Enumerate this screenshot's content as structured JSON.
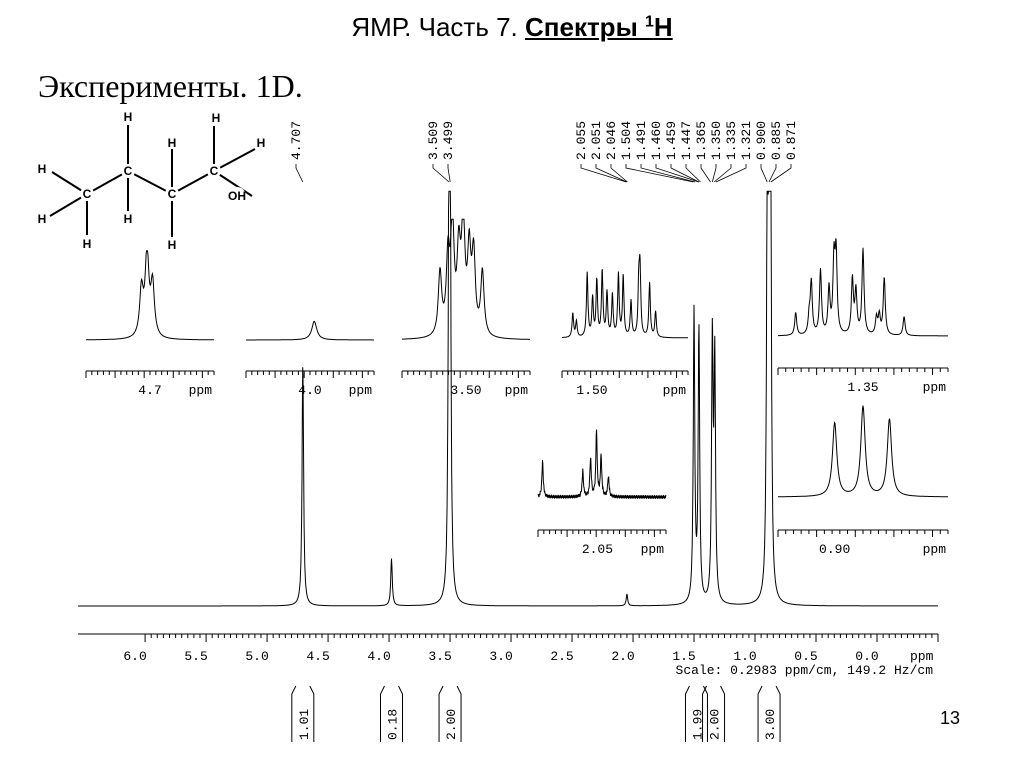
{
  "header": {
    "title_prefix": "ЯМР. Часть 7. ",
    "title_strong": "Спектры ",
    "title_sup": "1",
    "title_strong_end": "Н",
    "subtitle": "Эксперименты. 1D.",
    "page_number": "13"
  },
  "structure": {
    "carbon_label": "C",
    "hydrogen_label": "H",
    "hydroxyl_label": "OH"
  },
  "colors": {
    "ink": "#000000",
    "background": "#ffffff"
  },
  "chart_data": [
    {
      "type": "line",
      "title": "",
      "xlabel": "ppm",
      "xlim": [
        6.55,
        -0.5
      ],
      "x_reversed": true,
      "x_ticks": [
        "6.0",
        "5.5",
        "5.0",
        "4.5",
        "4.0",
        "3.5",
        "3.0",
        "2.5",
        "2.0",
        "1.5",
        "1.0",
        "0.5",
        "0.0"
      ],
      "x_tick_values": [
        6.0,
        5.5,
        5.0,
        4.5,
        4.0,
        3.5,
        3.0,
        2.5,
        2.0,
        1.5,
        1.0,
        0.5,
        0.0
      ],
      "scale_text": "Scale: 0.2983 ppm/cm, 149.2 Hz/cm",
      "peaks": [
        {
          "ppm": 4.707,
          "height": 0.62
        },
        {
          "ppm": 3.98,
          "height": 0.12
        },
        {
          "ppm": 3.509,
          "height": 0.96
        },
        {
          "ppm": 3.499,
          "height": 0.98
        },
        {
          "ppm": 2.05,
          "height": 0.03
        },
        {
          "ppm": 1.5,
          "height": 0.74
        },
        {
          "ppm": 1.46,
          "height": 0.69
        },
        {
          "ppm": 1.35,
          "height": 0.66
        },
        {
          "ppm": 1.33,
          "height": 0.6
        },
        {
          "ppm": 0.9,
          "height": 0.92
        },
        {
          "ppm": 0.885,
          "height": 1.0
        },
        {
          "ppm": 0.871,
          "height": 0.9
        }
      ],
      "peak_labels": [
        {
          "text": "4.707",
          "ppm": 4.707
        },
        {
          "text": "3.509",
          "ppm": 3.509
        },
        {
          "text": "3.499",
          "ppm": 3.499
        },
        {
          "text": "2.055",
          "ppm": 2.055
        },
        {
          "text": "2.051",
          "ppm": 2.051
        },
        {
          "text": "2.046",
          "ppm": 2.046
        },
        {
          "text": "1.504",
          "ppm": 1.504
        },
        {
          "text": "1.491",
          "ppm": 1.491
        },
        {
          "text": "1.460",
          "ppm": 1.46
        },
        {
          "text": "1.459",
          "ppm": 1.459
        },
        {
          "text": "1.447",
          "ppm": 1.447
        },
        {
          "text": "1.365",
          "ppm": 1.365
        },
        {
          "text": "1.350",
          "ppm": 1.35
        },
        {
          "text": "1.335",
          "ppm": 1.335
        },
        {
          "text": "1.321",
          "ppm": 1.321
        },
        {
          "text": "0.900",
          "ppm": 0.9
        },
        {
          "text": "0.885",
          "ppm": 0.885
        },
        {
          "text": "0.871",
          "ppm": 0.871
        }
      ],
      "integrals": [
        {
          "ppm": 4.707,
          "value": "1.01"
        },
        {
          "ppm": 3.98,
          "value": "0.18"
        },
        {
          "ppm": 3.5,
          "value": "2.00"
        },
        {
          "ppm": 1.48,
          "value": "1.99"
        },
        {
          "ppm": 1.34,
          "value": "2.00"
        },
        {
          "ppm": 0.885,
          "value": "3.00"
        }
      ]
    },
    {
      "type": "line",
      "name": "inset 4.7",
      "tick_label": "4.7",
      "tick_ppm": 4.7,
      "unit_label": "ppm",
      "xlim": [
        4.85,
        4.55
      ],
      "peaks": [
        {
          "ppm": 4.72,
          "height": 0.55
        },
        {
          "ppm": 4.707,
          "height": 1.0
        },
        {
          "ppm": 4.694,
          "height": 0.62
        }
      ]
    },
    {
      "type": "line",
      "name": "inset 4.0",
      "tick_label": "4.0",
      "tick_ppm": 4.0,
      "unit_label": "ppm",
      "xlim": [
        4.3,
        3.7
      ],
      "peaks": [
        {
          "ppm": 3.98,
          "height": 0.22
        }
      ]
    },
    {
      "type": "line",
      "name": "inset 3.50",
      "tick_label": "3.50",
      "tick_ppm": 3.5,
      "unit_label": "ppm",
      "xlim": [
        3.58,
        3.42
      ],
      "peaks": [
        {
          "ppm": 3.5325,
          "height": 0.55
        },
        {
          "ppm": 3.5225,
          "height": 0.66
        },
        {
          "ppm": 3.517,
          "height": 0.95
        },
        {
          "ppm": 3.509,
          "height": 0.68
        },
        {
          "ppm": 3.5035,
          "height": 0.98
        },
        {
          "ppm": 3.496,
          "height": 0.7
        },
        {
          "ppm": 3.4905,
          "height": 0.68
        },
        {
          "ppm": 3.4795,
          "height": 0.56
        }
      ]
    },
    {
      "type": "line",
      "name": "inset 1.50",
      "tick_label": "1.50",
      "tick_ppm": 1.5,
      "unit_label": "ppm",
      "xlim": [
        1.525,
        1.42
      ],
      "peaks": [
        {
          "ppm": 1.516,
          "height": 0.3
        },
        {
          "ppm": 1.513,
          "height": 0.2
        },
        {
          "ppm": 1.504,
          "height": 0.8
        },
        {
          "ppm": 1.4995,
          "height": 0.48
        },
        {
          "ppm": 1.496,
          "height": 0.7
        },
        {
          "ppm": 1.4915,
          "height": 0.82
        },
        {
          "ppm": 1.4875,
          "height": 0.55
        },
        {
          "ppm": 1.483,
          "height": 0.52
        },
        {
          "ppm": 1.478,
          "height": 0.78
        },
        {
          "ppm": 1.474,
          "height": 0.76
        },
        {
          "ppm": 1.4675,
          "height": 0.45
        },
        {
          "ppm": 1.461,
          "height": 0.62
        },
        {
          "ppm": 1.46,
          "height": 0.8
        },
        {
          "ppm": 1.452,
          "height": 0.68
        },
        {
          "ppm": 1.447,
          "height": 0.32
        }
      ]
    },
    {
      "type": "line",
      "name": "inset 1.35",
      "tick_label": "1.35",
      "tick_ppm": 1.35,
      "unit_label": "ppm",
      "xlim": [
        1.41,
        1.29
      ],
      "peaks": [
        {
          "ppm": 1.3975,
          "height": 0.24
        },
        {
          "ppm": 1.388,
          "height": 0.18
        },
        {
          "ppm": 1.3865,
          "height": 0.55
        },
        {
          "ppm": 1.38,
          "height": 0.68
        },
        {
          "ppm": 1.374,
          "height": 0.48
        },
        {
          "ppm": 1.3705,
          "height": 0.75
        },
        {
          "ppm": 1.369,
          "height": 0.82
        },
        {
          "ppm": 1.3575,
          "height": 0.58
        },
        {
          "ppm": 1.355,
          "height": 0.45
        },
        {
          "ppm": 1.35,
          "height": 0.9
        },
        {
          "ppm": 1.3405,
          "height": 0.18
        },
        {
          "ppm": 1.3385,
          "height": 0.2
        },
        {
          "ppm": 1.335,
          "height": 0.6
        },
        {
          "ppm": 1.321,
          "height": 0.2
        }
      ]
    },
    {
      "type": "line",
      "name": "inset 2.05",
      "tick_label": "2.05",
      "tick_ppm": 2.05,
      "unit_label": "ppm",
      "xlim": [
        2.115,
        1.975
      ],
      "peaks": [
        {
          "ppm": 2.11,
          "height": 0.55
        },
        {
          "ppm": 2.066,
          "height": 0.4
        },
        {
          "ppm": 2.0575,
          "height": 0.6
        },
        {
          "ppm": 2.051,
          "height": 1.0
        },
        {
          "ppm": 2.046,
          "height": 0.62
        },
        {
          "ppm": 2.038,
          "height": 0.32
        }
      ]
    },
    {
      "type": "line",
      "name": "inset 0.90",
      "tick_label": "0.90",
      "tick_ppm": 0.9,
      "unit_label": "ppm",
      "xlim": [
        0.93,
        0.84
      ],
      "peaks": [
        {
          "ppm": 0.9,
          "height": 0.82
        },
        {
          "ppm": 0.885,
          "height": 1.0
        },
        {
          "ppm": 0.871,
          "height": 0.86
        }
      ]
    }
  ]
}
